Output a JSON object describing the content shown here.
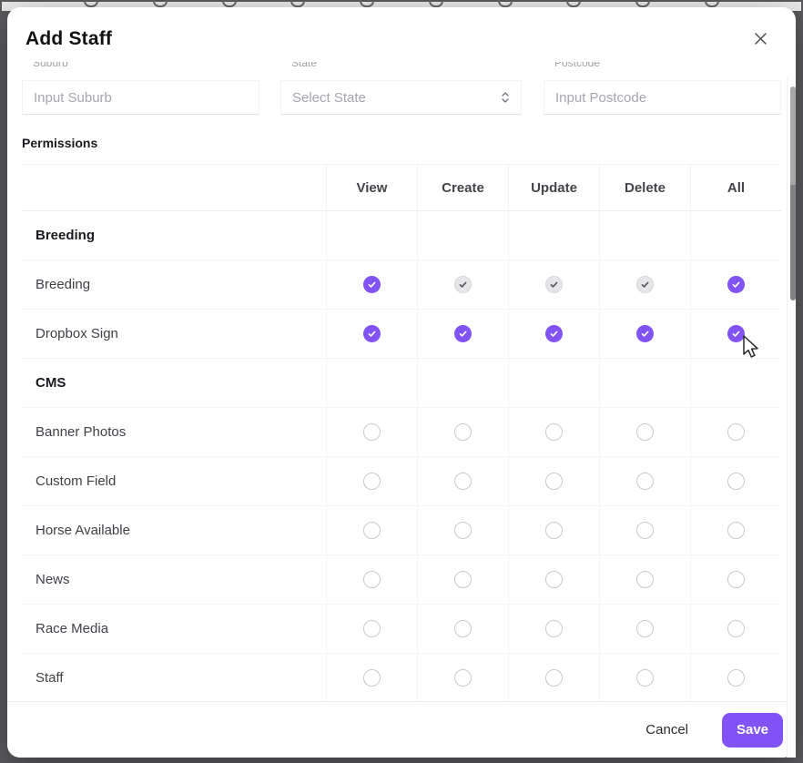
{
  "modal": {
    "title": "Add Staff"
  },
  "form": {
    "fields": [
      {
        "label": "Suburb",
        "placeholder": "Input Suburb",
        "type": "text"
      },
      {
        "label": "State",
        "placeholder": "Select State",
        "type": "select"
      },
      {
        "label": "Postcode",
        "placeholder": "Input Postcode",
        "type": "text"
      }
    ]
  },
  "permissions": {
    "section_label": "Permissions",
    "columns": [
      "View",
      "Create",
      "Update",
      "Delete",
      "All"
    ],
    "groups": [
      {
        "name": "Breeding",
        "rows": [
          {
            "label": "Breeding",
            "states": [
              "checked",
              "disabled-checked",
              "disabled-checked",
              "disabled-checked",
              "checked"
            ]
          },
          {
            "label": "Dropbox Sign",
            "states": [
              "checked",
              "checked",
              "checked",
              "checked",
              "checked"
            ]
          }
        ]
      },
      {
        "name": "CMS",
        "rows": [
          {
            "label": "Banner Photos",
            "states": [
              "unchecked",
              "unchecked",
              "unchecked",
              "unchecked",
              "unchecked"
            ]
          },
          {
            "label": "Custom Field",
            "states": [
              "unchecked",
              "unchecked",
              "unchecked",
              "unchecked",
              "unchecked"
            ]
          },
          {
            "label": "Horse Available",
            "states": [
              "unchecked",
              "unchecked",
              "unchecked",
              "unchecked",
              "unchecked"
            ]
          },
          {
            "label": "News",
            "states": [
              "unchecked",
              "unchecked",
              "unchecked",
              "unchecked",
              "unchecked"
            ]
          },
          {
            "label": "Race Media",
            "states": [
              "unchecked",
              "unchecked",
              "unchecked",
              "unchecked",
              "unchecked"
            ]
          },
          {
            "label": "Staff",
            "states": [
              "unchecked",
              "unchecked",
              "unchecked",
              "unchecked",
              "unchecked"
            ]
          }
        ]
      }
    ]
  },
  "footer": {
    "cancel_label": "Cancel",
    "save_label": "Save"
  },
  "colors": {
    "accent": "#8152f4",
    "disabled_check_bg": "#e6e6e9",
    "disabled_check_mark": "#55555b",
    "unchecked_border": "#c9c9cf"
  }
}
